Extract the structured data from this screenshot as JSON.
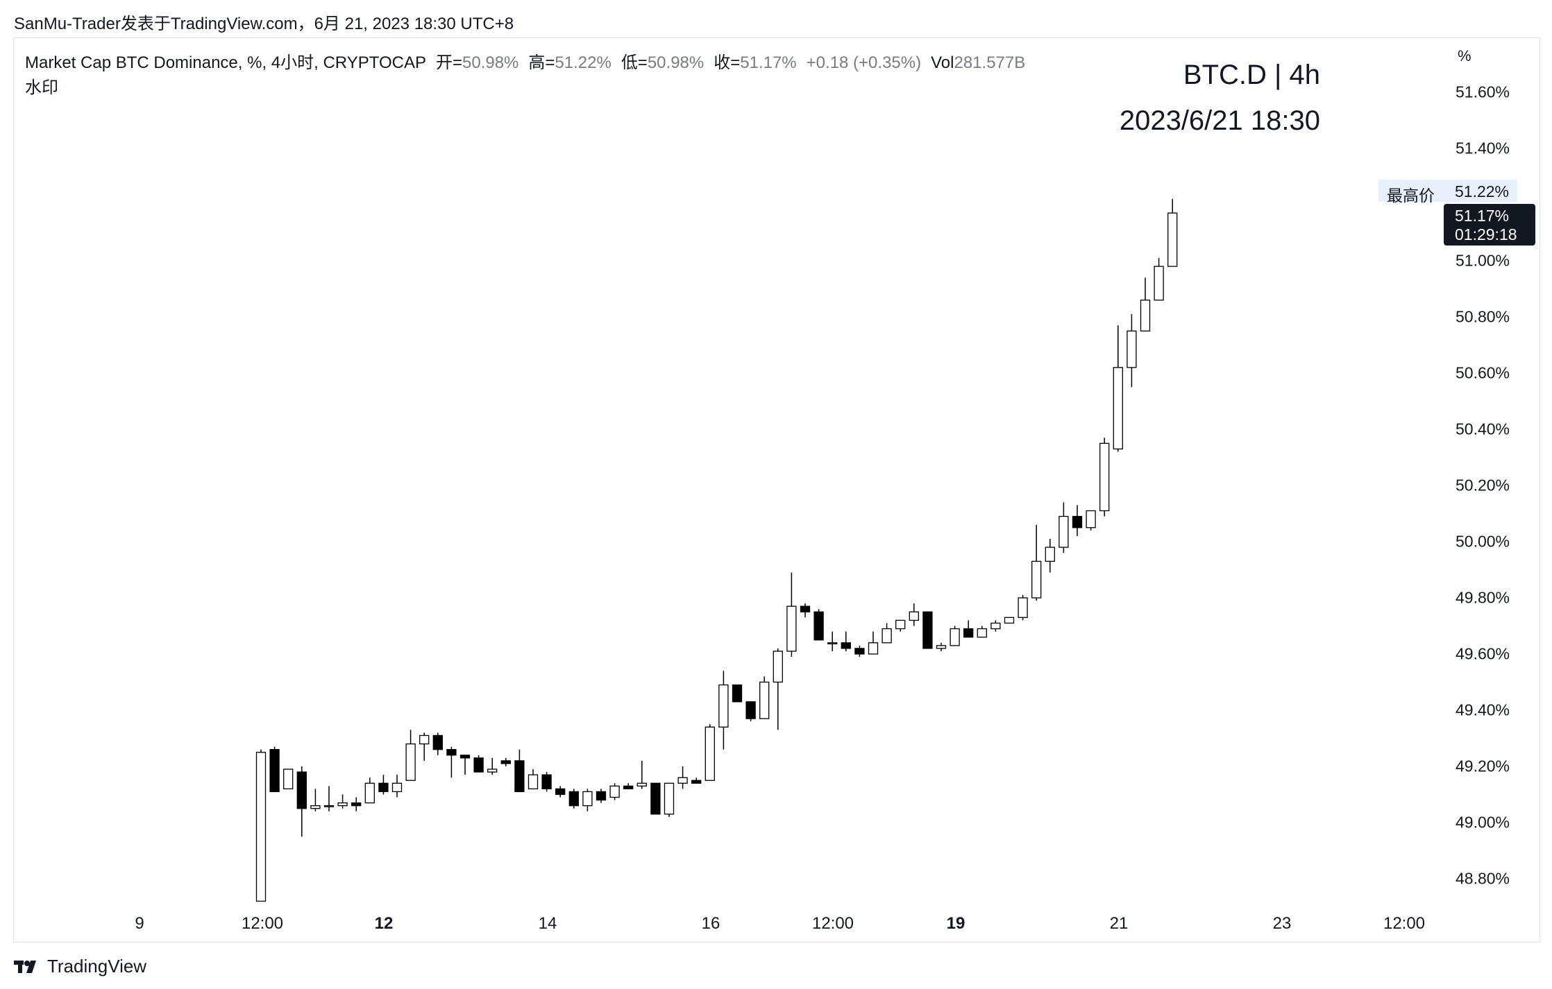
{
  "caption": "SanMu-Trader发表于TradingView.com，6月 21, 2023 18:30 UTC+8",
  "legend": {
    "symbol": "Market Cap BTC Dominance, %, 4小时, CRYPTOCAP",
    "open_label": "开=",
    "open": "50.98%",
    "high_label": "高=",
    "high": "51.22%",
    "low_label": "低=",
    "low": "50.98%",
    "close_label": "收=",
    "close": "51.17%",
    "change": "+0.18 (+0.35%)",
    "vol_label": "Vol",
    "vol": "281.577B"
  },
  "watermark": {
    "label": "水印",
    "title": "BTC.D | 4h",
    "date": "2023/6/21 18:30"
  },
  "y_unit": "%",
  "high_tag": {
    "label": "最高价",
    "value": "51.22%"
  },
  "price_tag": {
    "price": "51.17%",
    "countdown": "01:29:18"
  },
  "footer": {
    "brand": "TradingView"
  },
  "colors": {
    "up": "#ffffff",
    "down": "#000000",
    "outline": "#000000",
    "tag_bg": "#131722",
    "high_bg": "#e8f0fb"
  },
  "chart_data": {
    "type": "candlestick",
    "y_ticks": [
      "51.60%",
      "51.40%",
      "51.00%",
      "50.80%",
      "50.60%",
      "50.40%",
      "50.20%",
      "50.00%",
      "49.80%",
      "49.60%",
      "49.40%",
      "49.20%",
      "49.00%",
      "48.80%"
    ],
    "y_tick_values": [
      51.6,
      51.4,
      51.0,
      50.8,
      50.6,
      50.4,
      50.2,
      50.0,
      49.8,
      49.6,
      49.4,
      49.2,
      49.0,
      48.8
    ],
    "ylim": [
      48.72,
      51.68
    ],
    "x_ticks": [
      {
        "label": "9",
        "bold": false
      },
      {
        "label": "12:00",
        "bold": false
      },
      {
        "label": "12",
        "bold": true
      },
      {
        "label": "14",
        "bold": false
      },
      {
        "label": "16",
        "bold": false
      },
      {
        "label": "12:00",
        "bold": false
      },
      {
        "label": "19",
        "bold": true
      },
      {
        "label": "21",
        "bold": false
      },
      {
        "label": "23",
        "bold": false
      },
      {
        "label": "12:00",
        "bold": false
      }
    ],
    "candles": [
      [
        48.72,
        49.26,
        48.72,
        49.25
      ],
      [
        49.26,
        49.27,
        49.11,
        49.11
      ],
      [
        49.12,
        49.19,
        49.12,
        49.19
      ],
      [
        49.18,
        49.2,
        48.95,
        49.05
      ],
      [
        49.05,
        49.12,
        49.04,
        49.06
      ],
      [
        49.06,
        49.13,
        49.04,
        49.06
      ],
      [
        49.06,
        49.1,
        49.05,
        49.07
      ],
      [
        49.07,
        49.09,
        49.04,
        49.06
      ],
      [
        49.07,
        49.16,
        49.07,
        49.14
      ],
      [
        49.14,
        49.17,
        49.1,
        49.11
      ],
      [
        49.11,
        49.17,
        49.09,
        49.14
      ],
      [
        49.15,
        49.33,
        49.15,
        49.28
      ],
      [
        49.28,
        49.32,
        49.22,
        49.31
      ],
      [
        49.31,
        49.32,
        49.24,
        49.26
      ],
      [
        49.26,
        49.27,
        49.16,
        49.24
      ],
      [
        49.24,
        49.24,
        49.17,
        49.23
      ],
      [
        49.23,
        49.24,
        49.18,
        49.18
      ],
      [
        49.18,
        49.23,
        49.17,
        49.19
      ],
      [
        49.22,
        49.23,
        49.2,
        49.21
      ],
      [
        49.22,
        49.26,
        49.11,
        49.11
      ],
      [
        49.12,
        49.19,
        49.12,
        49.17
      ],
      [
        49.17,
        49.18,
        49.11,
        49.12
      ],
      [
        49.12,
        49.13,
        49.09,
        49.1
      ],
      [
        49.11,
        49.12,
        49.05,
        49.06
      ],
      [
        49.06,
        49.12,
        49.04,
        49.11
      ],
      [
        49.11,
        49.12,
        49.07,
        49.08
      ],
      [
        49.09,
        49.14,
        49.08,
        49.13
      ],
      [
        49.13,
        49.14,
        49.12,
        49.12
      ],
      [
        49.13,
        49.22,
        49.12,
        49.14
      ],
      [
        49.14,
        49.14,
        49.03,
        49.03
      ],
      [
        49.03,
        49.14,
        49.02,
        49.14
      ],
      [
        49.14,
        49.2,
        49.12,
        49.16
      ],
      [
        49.15,
        49.16,
        49.14,
        49.14
      ],
      [
        49.15,
        49.35,
        49.15,
        49.34
      ],
      [
        49.34,
        49.54,
        49.26,
        49.49
      ],
      [
        49.49,
        49.49,
        49.43,
        49.43
      ],
      [
        49.43,
        49.43,
        49.36,
        49.37
      ],
      [
        49.37,
        49.52,
        49.37,
        49.5
      ],
      [
        49.5,
        49.62,
        49.33,
        49.61
      ],
      [
        49.61,
        49.89,
        49.59,
        49.77
      ],
      [
        49.77,
        49.78,
        49.73,
        49.75
      ],
      [
        49.75,
        49.76,
        49.65,
        49.65
      ],
      [
        49.64,
        49.68,
        49.61,
        49.64
      ],
      [
        49.64,
        49.68,
        49.61,
        49.62
      ],
      [
        49.62,
        49.63,
        49.59,
        49.6
      ],
      [
        49.6,
        49.68,
        49.6,
        49.64
      ],
      [
        49.64,
        49.71,
        49.64,
        49.69
      ],
      [
        49.69,
        49.72,
        49.68,
        49.72
      ],
      [
        49.72,
        49.78,
        49.7,
        49.75
      ],
      [
        49.75,
        49.75,
        49.62,
        49.62
      ],
      [
        49.62,
        49.64,
        49.61,
        49.63
      ],
      [
        49.63,
        49.7,
        49.63,
        49.69
      ],
      [
        49.69,
        49.72,
        49.66,
        49.66
      ],
      [
        49.66,
        49.7,
        49.66,
        49.69
      ],
      [
        49.69,
        49.72,
        49.68,
        49.71
      ],
      [
        49.71,
        49.73,
        49.71,
        49.73
      ],
      [
        49.73,
        49.81,
        49.72,
        49.8
      ],
      [
        49.8,
        50.06,
        49.79,
        49.93
      ],
      [
        49.93,
        50.01,
        49.89,
        49.98
      ],
      [
        49.98,
        50.14,
        49.96,
        50.09
      ],
      [
        50.09,
        50.13,
        50.02,
        50.05
      ],
      [
        50.05,
        50.11,
        50.04,
        50.11
      ],
      [
        50.11,
        50.37,
        50.09,
        50.35
      ],
      [
        50.33,
        50.77,
        50.32,
        50.62
      ],
      [
        50.62,
        50.81,
        50.55,
        50.75
      ],
      [
        50.75,
        50.94,
        50.75,
        50.86
      ],
      [
        50.86,
        51.01,
        50.86,
        50.98
      ],
      [
        50.98,
        51.22,
        50.98,
        51.17
      ]
    ]
  }
}
